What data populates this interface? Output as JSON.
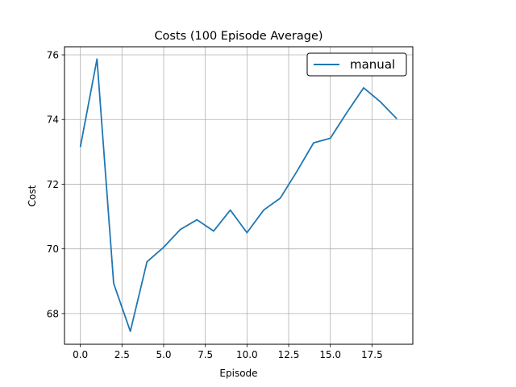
{
  "chart_data": {
    "type": "line",
    "title": "Costs (100 Episode Average)",
    "xlabel": "Episode",
    "ylabel": "Cost",
    "xlim": [
      -0.95,
      19.95
    ],
    "ylim": [
      67.05,
      76.25
    ],
    "xticks": [
      0,
      2.5,
      5,
      7.5,
      10,
      12.5,
      15,
      17.5
    ],
    "xtick_labels": [
      "0.0",
      "2.5",
      "5.0",
      "7.5",
      "10.0",
      "12.5",
      "15.0",
      "17.5"
    ],
    "yticks": [
      68,
      70,
      72,
      74,
      76
    ],
    "ytick_labels": [
      "68",
      "70",
      "72",
      "74",
      "76"
    ],
    "grid": true,
    "legend_position": "top-right",
    "series": [
      {
        "name": "manual",
        "color": "#1f77b4",
        "x": [
          0,
          1,
          2,
          3,
          4,
          5,
          6,
          7,
          8,
          9,
          10,
          11,
          12,
          13,
          14,
          15,
          16,
          17,
          18,
          19
        ],
        "values": [
          73.15,
          75.87,
          68.93,
          67.45,
          69.6,
          70.05,
          70.6,
          70.9,
          70.55,
          71.2,
          70.5,
          71.2,
          71.57,
          72.4,
          73.28,
          73.42,
          74.22,
          74.98,
          74.55,
          74.02
        ]
      }
    ]
  }
}
